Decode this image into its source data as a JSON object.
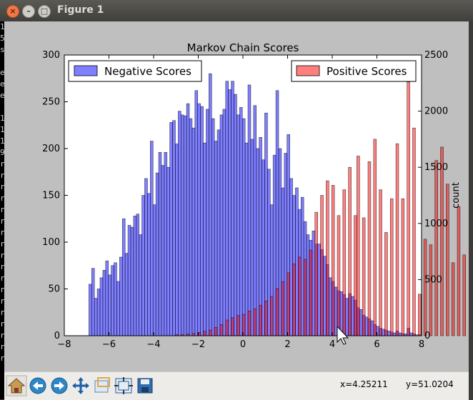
{
  "window": {
    "title": "Figure 1"
  },
  "terminal": {
    "lines": [
      "1",
      "5",
      "s",
      "",
      "e",
      "e",
      "e",
      "",
      "1",
      "1",
      "1",
      "9",
      "r",
      "r",
      "r",
      "r",
      "r",
      "r",
      "r",
      "r",
      "r",
      "r",
      "r",
      "r",
      "r",
      "r",
      "r",
      "r",
      "r",
      "r"
    ]
  },
  "toolbar": {
    "buttons": [
      {
        "name": "home",
        "icon": "home-icon"
      },
      {
        "name": "back",
        "icon": "back-arrow-icon"
      },
      {
        "name": "forward",
        "icon": "forward-arrow-icon"
      },
      {
        "name": "pan",
        "icon": "pan-icon"
      },
      {
        "name": "zoom",
        "icon": "zoom-icon"
      },
      {
        "name": "subplots",
        "icon": "subplots-icon"
      },
      {
        "name": "save",
        "icon": "save-icon"
      }
    ],
    "coord_x": "x=4.25211",
    "coord_y": "y=51.0204"
  },
  "chart_data": {
    "type": "bar",
    "title": "Markov Chain Scores",
    "xlabel": "",
    "ylabel_left": "",
    "ylabel_right": "count",
    "xlim": [
      -8,
      8
    ],
    "ylim_left": [
      0,
      300
    ],
    "ylim_right": [
      0,
      2500
    ],
    "xticks": [
      "−8",
      "−6",
      "−4",
      "−2",
      "0",
      "2",
      "4",
      "6",
      "8"
    ],
    "yticks_left": [
      "0",
      "50",
      "100",
      "150",
      "200",
      "250",
      "300"
    ],
    "yticks_right": [
      "0",
      "500",
      "1000",
      "1500",
      "2000",
      "2500"
    ],
    "legend_left": "top-left",
    "legend_right": "top-right",
    "colors": {
      "negative": "#0000ff",
      "positive": "#ff0000",
      "overlap": "#7a0088"
    },
    "series": [
      {
        "name": "Negative Scores",
        "axis": "left",
        "x_start": -6.9,
        "bin_width": 0.125,
        "values": [
          55,
          72,
          40,
          50,
          62,
          70,
          80,
          65,
          75,
          78,
          58,
          84,
          125,
          88,
          118,
          116,
          128,
          130,
          108,
          150,
          168,
          152,
          208,
          140,
          174,
          196,
          182,
          196,
          180,
          228,
          230,
          205,
          240,
          236,
          235,
          248,
          232,
          222,
          262,
          248,
          245,
          206,
          242,
          280,
          232,
          208,
          220,
          236,
          242,
          272,
          263,
          272,
          258,
          236,
          244,
          232,
          206,
          268,
          210,
          246,
          200,
          212,
          188,
          238,
          178,
          140,
          193,
          262,
          200,
          158,
          195,
          215,
          168,
          150,
          158,
          135,
          148,
          122,
          108,
          102,
          112,
          98,
          98,
          92,
          85,
          76,
          62,
          58,
          52,
          48,
          47,
          44,
          40,
          45,
          42,
          38,
          30,
          28,
          22,
          20,
          18,
          16,
          12,
          10,
          8,
          7,
          6,
          5,
          4,
          3,
          5,
          3,
          2,
          2,
          8,
          3,
          2,
          1,
          1
        ]
      },
      {
        "name": "Positive Scores",
        "axis": "right",
        "x_start": -4.9,
        "bin_width": 0.125,
        "values": [
          0,
          0,
          0,
          0,
          0,
          0,
          0,
          0,
          0,
          0,
          0,
          0,
          0,
          0,
          0,
          10,
          0,
          10,
          0,
          15,
          0,
          20,
          0,
          30,
          0,
          40,
          0,
          50,
          0,
          75,
          0,
          100,
          0,
          140,
          0,
          160,
          0,
          180,
          0,
          190,
          0,
          220,
          0,
          240,
          0,
          270,
          0,
          310,
          0,
          350,
          0,
          420,
          0,
          480,
          0,
          560,
          0,
          640,
          0,
          700,
          0,
          680,
          0,
          760,
          0,
          1100,
          0,
          1250,
          0,
          1380,
          0,
          1340,
          0,
          1070,
          0,
          1300,
          0,
          1500,
          0,
          1070,
          1600,
          0,
          1050,
          0,
          1550,
          0,
          1750,
          0,
          1300,
          0,
          920,
          0,
          1220,
          0,
          1710,
          0,
          1220,
          0,
          2260,
          0,
          1850,
          0,
          370,
          0,
          860,
          0,
          810,
          0,
          1560,
          0,
          1680,
          0,
          1350,
          0,
          650,
          0,
          1150,
          0,
          720,
          0,
          0,
          0,
          330,
          0,
          0,
          520,
          0,
          0,
          0,
          320,
          0,
          0,
          0,
          0,
          0,
          0,
          0,
          0,
          50,
          0,
          0,
          0,
          0,
          0,
          10,
          0
        ]
      }
    ]
  }
}
